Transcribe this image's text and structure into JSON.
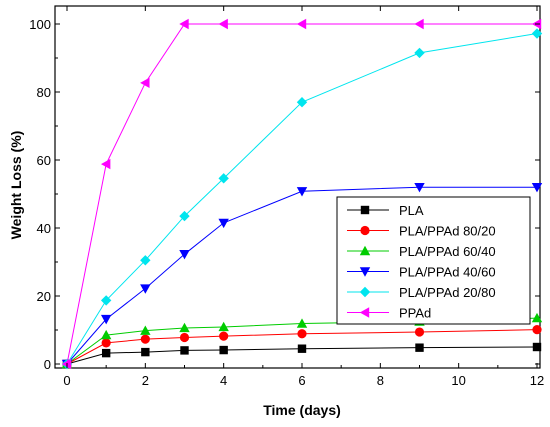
{
  "chart_data": {
    "type": "line",
    "title": "",
    "xlabel": "Time (days)",
    "ylabel": "Weight Loss (%)",
    "xlim": [
      0,
      12
    ],
    "ylim": [
      0,
      100
    ],
    "xticks": [
      0,
      2,
      4,
      6,
      8,
      10,
      12
    ],
    "yticks": [
      0,
      20,
      40,
      60,
      80,
      100
    ],
    "grid": false,
    "legend_position": "right-center",
    "series": [
      {
        "name": "PLA",
        "color": "#000000",
        "marker": "square",
        "x": [
          0,
          1,
          2,
          3,
          4,
          6,
          9,
          12
        ],
        "y": [
          0,
          3.2,
          3.5,
          4,
          4.1,
          4.5,
          4.8,
          5.0
        ]
      },
      {
        "name": "PLA/PPAd 80/20",
        "color": "#ff0000",
        "marker": "circle",
        "x": [
          0,
          1,
          2,
          3,
          4,
          6,
          9,
          12
        ],
        "y": [
          0,
          6.2,
          7.3,
          7.8,
          8.2,
          8.9,
          9.4,
          10.1
        ]
      },
      {
        "name": "PLA/PPAd 60/40",
        "color": "#00cc00",
        "marker": "triangle-up",
        "x": [
          0,
          1,
          2,
          3,
          4,
          6,
          9,
          12
        ],
        "y": [
          0,
          8.5,
          9.8,
          10.6,
          10.9,
          11.9,
          12.5,
          13.5
        ]
      },
      {
        "name": "PLA/PPAd 40/60",
        "color": "#0000ff",
        "marker": "triangle-down",
        "x": [
          0,
          1,
          2,
          3,
          4,
          6,
          9,
          12
        ],
        "y": [
          0,
          13.2,
          22.2,
          32.3,
          41.5,
          50.8,
          52,
          52
        ]
      },
      {
        "name": "PLA/PPAd 20/80",
        "color": "#00e5ee",
        "marker": "diamond",
        "x": [
          0,
          1,
          2,
          3,
          4,
          6,
          9,
          12
        ],
        "y": [
          0,
          18.7,
          30.5,
          43.5,
          54.6,
          77,
          91.5,
          97.2
        ]
      },
      {
        "name": "PPAd",
        "color": "#ff00ff",
        "marker": "triangle-left",
        "x": [
          0,
          1,
          2,
          3,
          4,
          6,
          9,
          12
        ],
        "y": [
          0,
          58.8,
          82.7,
          100,
          100,
          100,
          100,
          100
        ]
      }
    ]
  }
}
